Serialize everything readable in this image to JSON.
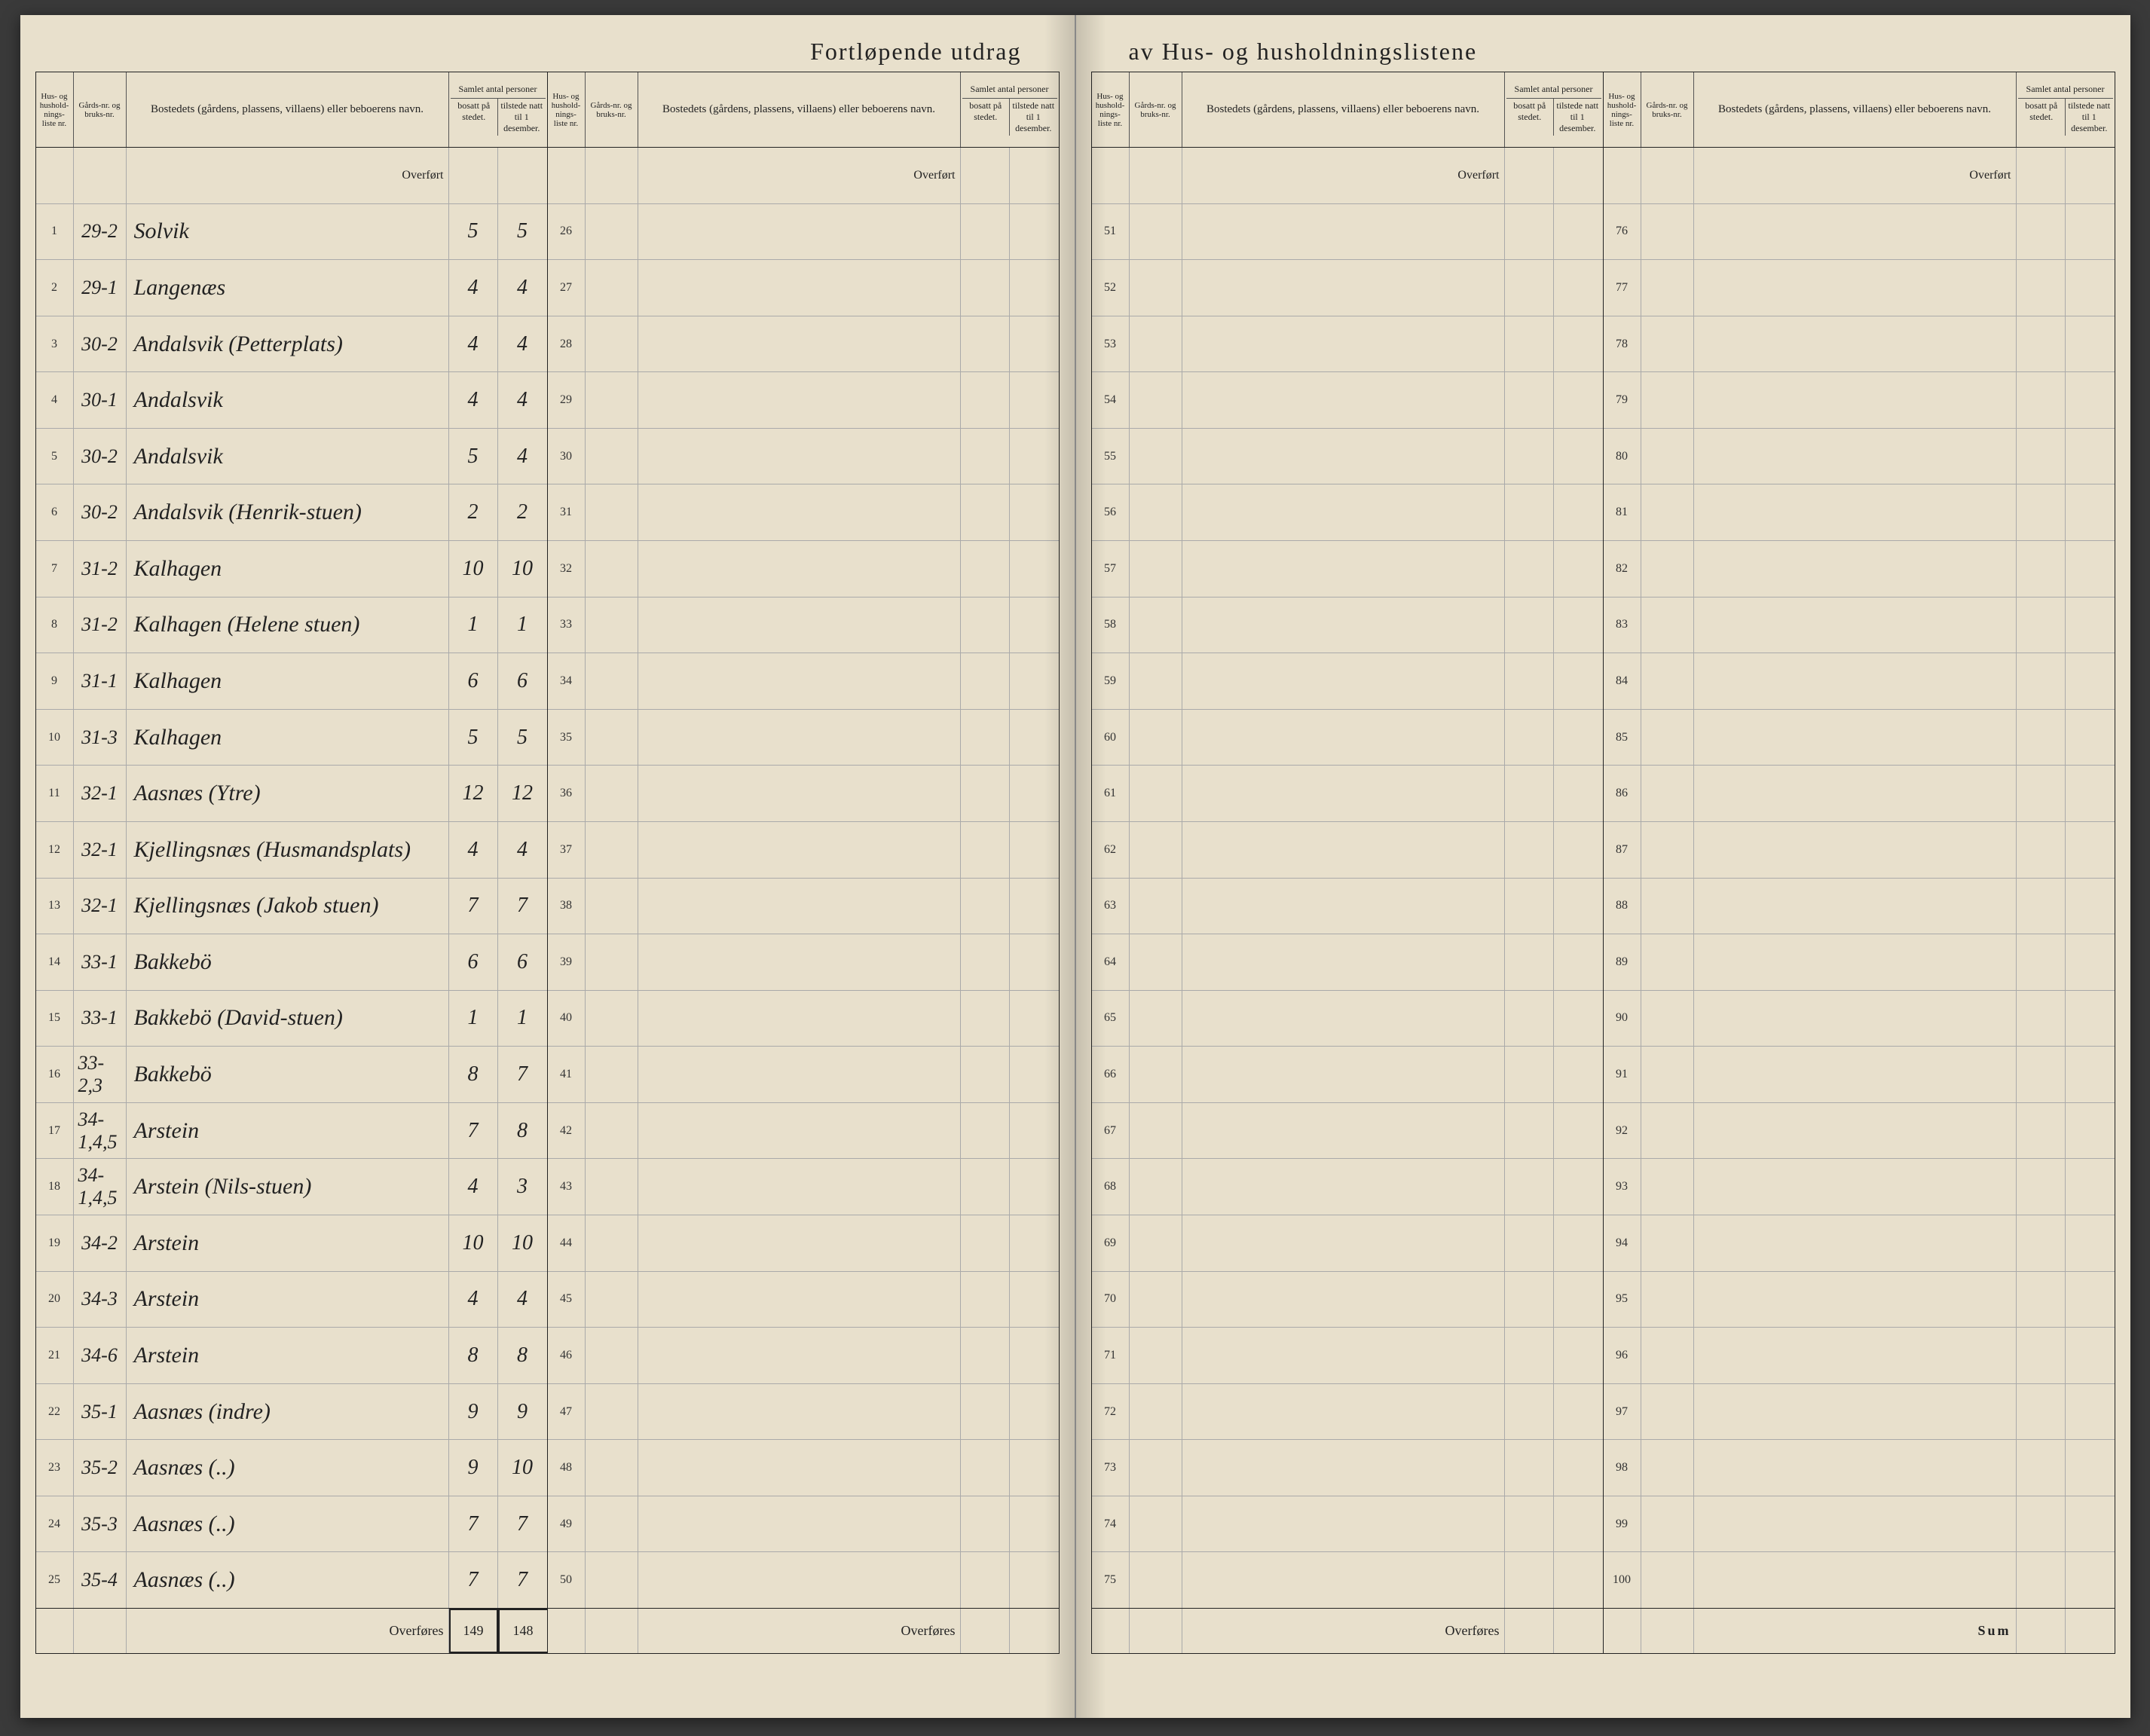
{
  "title_left": "Fortløpende utdrag",
  "title_right": "av Hus- og husholdningslistene",
  "headers": {
    "col_nr": "Hus- og hushold-nings-liste nr.",
    "col_gard": "Gårds-nr. og bruks-nr.",
    "col_name": "Bostedets (gårdens, plassens, villaens) eller beboerens navn.",
    "col_samlet": "Samlet antal personer",
    "col_bosatt": "bosatt på stedet.",
    "col_tilstede": "tilstede natt til 1 desember."
  },
  "overfort_label": "Overført",
  "overfores_label": "Overføres",
  "sum_label": "Sum",
  "section1": {
    "rows": [
      {
        "nr": "1",
        "gard": "29-2",
        "name": "Solvik",
        "bo": "5",
        "ti": "5"
      },
      {
        "nr": "2",
        "gard": "29-1",
        "name": "Langenæs",
        "bo": "4",
        "ti": "4"
      },
      {
        "nr": "3",
        "gard": "30-2",
        "name": "Andalsvik (Petterplats)",
        "bo": "4",
        "ti": "4"
      },
      {
        "nr": "4",
        "gard": "30-1",
        "name": "Andalsvik",
        "bo": "4",
        "ti": "4"
      },
      {
        "nr": "5",
        "gard": "30-2",
        "name": "Andalsvik",
        "bo": "5",
        "ti": "4"
      },
      {
        "nr": "6",
        "gard": "30-2",
        "name": "Andalsvik (Henrik-stuen)",
        "bo": "2",
        "ti": "2"
      },
      {
        "nr": "7",
        "gard": "31-2",
        "name": "Kalhagen",
        "bo": "10",
        "ti": "10"
      },
      {
        "nr": "8",
        "gard": "31-2",
        "name": "Kalhagen (Helene stuen)",
        "bo": "1",
        "ti": "1"
      },
      {
        "nr": "9",
        "gard": "31-1",
        "name": "Kalhagen",
        "bo": "6",
        "ti": "6"
      },
      {
        "nr": "10",
        "gard": "31-3",
        "name": "Kalhagen",
        "bo": "5",
        "ti": "5"
      },
      {
        "nr": "11",
        "gard": "32-1",
        "name": "Aasnæs (Ytre)",
        "bo": "12",
        "ti": "12"
      },
      {
        "nr": "12",
        "gard": "32-1",
        "name": "Kjellingsnæs (Husmandsplats)",
        "bo": "4",
        "ti": "4"
      },
      {
        "nr": "13",
        "gard": "32-1",
        "name": "Kjellingsnæs (Jakob stuen)",
        "bo": "7",
        "ti": "7"
      },
      {
        "nr": "14",
        "gard": "33-1",
        "name": "Bakkebö",
        "bo": "6",
        "ti": "6"
      },
      {
        "nr": "15",
        "gard": "33-1",
        "name": "Bakkebö (David-stuen)",
        "bo": "1",
        "ti": "1"
      },
      {
        "nr": "16",
        "gard": "33-2,3",
        "name": "Bakkebö",
        "bo": "8",
        "ti": "7"
      },
      {
        "nr": "17",
        "gard": "34-1,4,5",
        "name": "Arstein",
        "bo": "7",
        "ti": "8"
      },
      {
        "nr": "18",
        "gard": "34-1,4,5",
        "name": "Arstein (Nils-stuen)",
        "bo": "4",
        "ti": "3"
      },
      {
        "nr": "19",
        "gard": "34-2",
        "name": "Arstein",
        "bo": "10",
        "ti": "10"
      },
      {
        "nr": "20",
        "gard": "34-3",
        "name": "Arstein",
        "bo": "4",
        "ti": "4"
      },
      {
        "nr": "21",
        "gard": "34-6",
        "name": "Arstein",
        "bo": "8",
        "ti": "8"
      },
      {
        "nr": "22",
        "gard": "35-1",
        "name": "Aasnæs (indre)",
        "bo": "9",
        "ti": "9"
      },
      {
        "nr": "23",
        "gard": "35-2",
        "name": "Aasnæs (..)",
        "bo": "9",
        "ti": "10"
      },
      {
        "nr": "24",
        "gard": "35-3",
        "name": "Aasnæs (..)",
        "bo": "7",
        "ti": "7"
      },
      {
        "nr": "25",
        "gard": "35-4",
        "name": "Aasnæs (..)",
        "bo": "7",
        "ti": "7"
      }
    ],
    "footer_bo": "149",
    "footer_ti": "148"
  },
  "section2": {
    "start": 26,
    "end": 50
  },
  "section3": {
    "start": 51,
    "end": 75
  },
  "section4": {
    "start": 76,
    "end": 100
  },
  "colors": {
    "paper": "#e8e0cc",
    "ink": "#222222",
    "rule": "#aaaaaa",
    "border": "#222222"
  }
}
